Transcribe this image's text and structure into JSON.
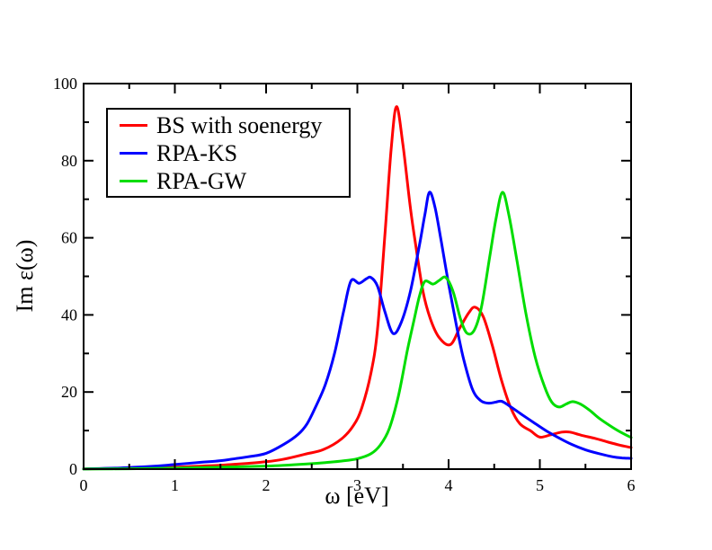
{
  "figure": {
    "background_color": "#ffffff",
    "frame_color": "#000000",
    "text_color": "#000000"
  },
  "chart_data": {
    "type": "line",
    "title": "",
    "xlabel": "ω [eV]",
    "ylabel": "Im ε(ω)",
    "xlim": [
      0,
      6
    ],
    "ylim": [
      0,
      100
    ],
    "x_major_ticks": [
      0,
      1,
      2,
      3,
      4,
      5,
      6
    ],
    "x_minor_ticks": [
      0.5,
      1.5,
      2.5,
      3.5,
      4.5,
      5.5
    ],
    "y_major_ticks": [
      0,
      20,
      40,
      60,
      80,
      100
    ],
    "y_minor_ticks": [
      10,
      30,
      50,
      70,
      90
    ],
    "grid": false,
    "legend_position": "upper-left-inside",
    "series": [
      {
        "name": "BS with soenergy",
        "color": "#ff0000",
        "points": [
          [
            0,
            0.05
          ],
          [
            0.4,
            0.2
          ],
          [
            0.8,
            0.4
          ],
          [
            1.0,
            0.5
          ],
          [
            1.3,
            0.8
          ],
          [
            1.5,
            1.0
          ],
          [
            1.8,
            1.5
          ],
          [
            2.0,
            1.9
          ],
          [
            2.2,
            2.6
          ],
          [
            2.43,
            3.9
          ],
          [
            2.63,
            5.1
          ],
          [
            2.83,
            7.9
          ],
          [
            2.96,
            11.4
          ],
          [
            3.05,
            16
          ],
          [
            3.15,
            25
          ],
          [
            3.22,
            36
          ],
          [
            3.3,
            60
          ],
          [
            3.37,
            83
          ],
          [
            3.43,
            94
          ],
          [
            3.5,
            84
          ],
          [
            3.58,
            68
          ],
          [
            3.64,
            58
          ],
          [
            3.72,
            46
          ],
          [
            3.8,
            39
          ],
          [
            3.9,
            34
          ],
          [
            4.02,
            32.3
          ],
          [
            4.12,
            36.5
          ],
          [
            4.22,
            40.5
          ],
          [
            4.29,
            42
          ],
          [
            4.38,
            39.5
          ],
          [
            4.48,
            32
          ],
          [
            4.58,
            23
          ],
          [
            4.68,
            16
          ],
          [
            4.78,
            11.8
          ],
          [
            4.9,
            9.9
          ],
          [
            5.0,
            8.3
          ],
          [
            5.12,
            8.9
          ],
          [
            5.24,
            9.6
          ],
          [
            5.33,
            9.6
          ],
          [
            5.45,
            8.8
          ],
          [
            5.6,
            8.0
          ],
          [
            5.75,
            7.0
          ],
          [
            5.88,
            6.2
          ],
          [
            6.0,
            5.6
          ]
        ]
      },
      {
        "name": "RPA-KS",
        "color": "#0000ff",
        "points": [
          [
            0,
            0.05
          ],
          [
            0.4,
            0.3
          ],
          [
            0.8,
            0.8
          ],
          [
            1.0,
            1.2
          ],
          [
            1.3,
            1.8
          ],
          [
            1.5,
            2.2
          ],
          [
            1.8,
            3.2
          ],
          [
            2.0,
            4.1
          ],
          [
            2.2,
            6.5
          ],
          [
            2.35,
            9.0
          ],
          [
            2.45,
            11.8
          ],
          [
            2.55,
            16.5
          ],
          [
            2.65,
            22
          ],
          [
            2.75,
            30
          ],
          [
            2.85,
            41
          ],
          [
            2.93,
            48.8
          ],
          [
            3.02,
            48.2
          ],
          [
            3.1,
            49.4
          ],
          [
            3.15,
            49.7
          ],
          [
            3.22,
            47.5
          ],
          [
            3.3,
            41
          ],
          [
            3.39,
            35.2
          ],
          [
            3.48,
            38
          ],
          [
            3.58,
            46
          ],
          [
            3.68,
            58
          ],
          [
            3.74,
            66
          ],
          [
            3.79,
            71.8
          ],
          [
            3.85,
            68
          ],
          [
            3.92,
            59
          ],
          [
            4.0,
            48
          ],
          [
            4.08,
            38
          ],
          [
            4.16,
            29
          ],
          [
            4.26,
            20.8
          ],
          [
            4.35,
            17.8
          ],
          [
            4.44,
            17.1
          ],
          [
            4.52,
            17.4
          ],
          [
            4.58,
            17.6
          ],
          [
            4.66,
            16.5
          ],
          [
            4.8,
            14.2
          ],
          [
            4.95,
            11.8
          ],
          [
            5.08,
            9.8
          ],
          [
            5.2,
            8.2
          ],
          [
            5.35,
            6.4
          ],
          [
            5.5,
            5.0
          ],
          [
            5.65,
            4.0
          ],
          [
            5.8,
            3.2
          ],
          [
            5.9,
            2.9
          ],
          [
            6.0,
            2.8
          ]
        ]
      },
      {
        "name": "RPA-GW",
        "color": "#00dd00",
        "points": [
          [
            0,
            0.03
          ],
          [
            0.5,
            0.1
          ],
          [
            1.0,
            0.25
          ],
          [
            1.5,
            0.5
          ],
          [
            2.0,
            0.8
          ],
          [
            2.2,
            1.0
          ],
          [
            2.43,
            1.3
          ],
          [
            2.65,
            1.7
          ],
          [
            2.83,
            2.1
          ],
          [
            3.0,
            2.7
          ],
          [
            3.15,
            4.0
          ],
          [
            3.25,
            6.2
          ],
          [
            3.35,
            10.5
          ],
          [
            3.45,
            19
          ],
          [
            3.55,
            31
          ],
          [
            3.62,
            38.5
          ],
          [
            3.68,
            44.8
          ],
          [
            3.74,
            48.7
          ],
          [
            3.83,
            48.0
          ],
          [
            3.9,
            49.0
          ],
          [
            3.97,
            49.7
          ],
          [
            4.05,
            46
          ],
          [
            4.13,
            39
          ],
          [
            4.2,
            35.3
          ],
          [
            4.28,
            36
          ],
          [
            4.36,
            42
          ],
          [
            4.45,
            55
          ],
          [
            4.52,
            65
          ],
          [
            4.59,
            71.8
          ],
          [
            4.66,
            66
          ],
          [
            4.75,
            54
          ],
          [
            4.85,
            40
          ],
          [
            4.95,
            29
          ],
          [
            5.05,
            21.5
          ],
          [
            5.13,
            17.4
          ],
          [
            5.21,
            16.1
          ],
          [
            5.29,
            16.9
          ],
          [
            5.36,
            17.5
          ],
          [
            5.45,
            16.8
          ],
          [
            5.55,
            15.2
          ],
          [
            5.65,
            13.2
          ],
          [
            5.8,
            10.8
          ],
          [
            5.9,
            9.4
          ],
          [
            6.0,
            8.2
          ]
        ]
      }
    ]
  }
}
